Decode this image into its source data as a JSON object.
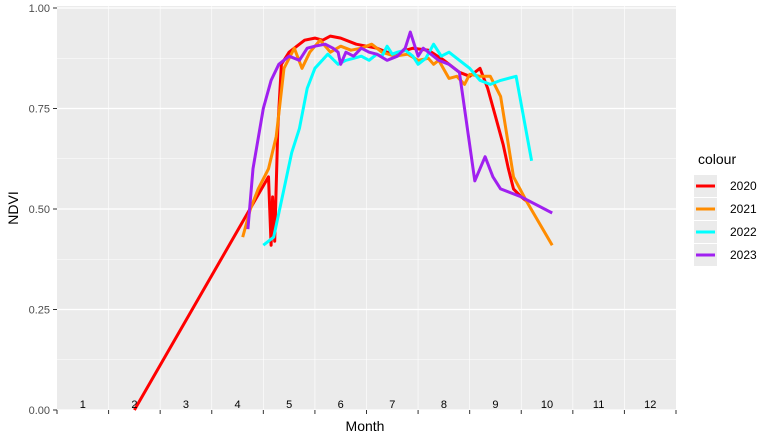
{
  "chart_data": {
    "type": "line",
    "title": "",
    "xlabel": "Month",
    "ylabel": "NDVI",
    "xlim": [
      0,
      12
    ],
    "ylim": [
      0,
      1
    ],
    "y_ticks": [
      "0.00",
      "0.25",
      "0.50",
      "0.75",
      "1.00"
    ],
    "y_tick_values": [
      0,
      0.25,
      0.5,
      0.75,
      1
    ],
    "month_labels": [
      "1",
      "2",
      "3",
      "4",
      "5",
      "6",
      "7",
      "8",
      "9",
      "10",
      "11",
      "12"
    ],
    "month_label_positions": [
      0.5,
      1.5,
      2.5,
      3.5,
      4.5,
      5.5,
      6.5,
      7.5,
      8.5,
      9.5,
      10.5,
      11.5
    ],
    "grid": true,
    "background": "#ebebeb",
    "legend": {
      "title": "colour",
      "position": "right"
    },
    "series": [
      {
        "name": "2020",
        "color": "#ff0000",
        "x": [
          1.5,
          4.1,
          4.15,
          4.18,
          4.22,
          4.28,
          4.35,
          4.5,
          4.8,
          5.0,
          5.15,
          5.3,
          5.5,
          5.8,
          6.2,
          6.5,
          6.9,
          7.2,
          7.5,
          7.8,
          8.0,
          8.2,
          8.35,
          8.5,
          8.65,
          8.75,
          8.85,
          9.0,
          9.1
        ],
        "y": [
          0.0,
          0.58,
          0.41,
          0.53,
          0.42,
          0.7,
          0.86,
          0.89,
          0.92,
          0.925,
          0.92,
          0.93,
          0.925,
          0.91,
          0.9,
          0.885,
          0.9,
          0.895,
          0.87,
          0.84,
          0.83,
          0.85,
          0.8,
          0.73,
          0.66,
          0.6,
          0.55,
          0.53,
          0.52
        ]
      },
      {
        "name": "2021",
        "color": "#ff8c00",
        "x": [
          3.6,
          3.75,
          3.9,
          4.1,
          4.25,
          4.4,
          4.6,
          4.75,
          4.9,
          5.1,
          5.3,
          5.5,
          5.7,
          5.9,
          6.1,
          6.3,
          6.55,
          6.8,
          7.0,
          7.2,
          7.3,
          7.4,
          7.6,
          7.75,
          7.9,
          8.0,
          8.2,
          8.4,
          8.6,
          8.7,
          8.85,
          9.1,
          9.6
        ],
        "y": [
          0.43,
          0.5,
          0.55,
          0.6,
          0.68,
          0.85,
          0.9,
          0.85,
          0.89,
          0.92,
          0.89,
          0.905,
          0.895,
          0.9,
          0.91,
          0.89,
          0.88,
          0.885,
          0.87,
          0.875,
          0.86,
          0.87,
          0.825,
          0.83,
          0.81,
          0.835,
          0.83,
          0.83,
          0.78,
          0.7,
          0.58,
          0.52,
          0.41
        ]
      },
      {
        "name": "2022",
        "color": "#00ffff",
        "x": [
          4.0,
          4.1,
          4.2,
          4.4,
          4.55,
          4.7,
          4.85,
          5.0,
          5.25,
          5.45,
          5.6,
          5.75,
          5.9,
          6.05,
          6.2,
          6.3,
          6.4,
          6.5,
          6.6,
          6.75,
          6.9,
          7.0,
          7.15,
          7.3,
          7.45,
          7.6,
          7.8,
          8.0,
          8.2,
          8.4,
          8.6,
          8.9,
          9.2
        ],
        "y": [
          0.41,
          0.42,
          0.43,
          0.55,
          0.64,
          0.7,
          0.8,
          0.85,
          0.885,
          0.86,
          0.87,
          0.875,
          0.88,
          0.87,
          0.885,
          0.88,
          0.905,
          0.885,
          0.89,
          0.895,
          0.88,
          0.86,
          0.875,
          0.91,
          0.88,
          0.89,
          0.87,
          0.85,
          0.82,
          0.81,
          0.82,
          0.83,
          0.62
        ]
      },
      {
        "name": "2023",
        "color": "#a020f0",
        "x": [
          3.7,
          3.8,
          4.0,
          4.15,
          4.3,
          4.5,
          4.7,
          4.85,
          5.0,
          5.2,
          5.35,
          5.45,
          5.5,
          5.6,
          5.75,
          5.9,
          6.05,
          6.2,
          6.4,
          6.6,
          6.75,
          6.85,
          6.95,
          7.0,
          7.1,
          7.2,
          7.4,
          7.6,
          7.8,
          8.1,
          8.3,
          8.45,
          8.6,
          8.8,
          9.0,
          9.6
        ],
        "y": [
          0.45,
          0.6,
          0.75,
          0.82,
          0.86,
          0.88,
          0.87,
          0.9,
          0.905,
          0.91,
          0.9,
          0.89,
          0.86,
          0.89,
          0.88,
          0.9,
          0.89,
          0.885,
          0.87,
          0.88,
          0.9,
          0.94,
          0.9,
          0.88,
          0.9,
          0.89,
          0.87,
          0.86,
          0.84,
          0.57,
          0.63,
          0.58,
          0.55,
          0.54,
          0.53,
          0.49
        ]
      }
    ]
  }
}
